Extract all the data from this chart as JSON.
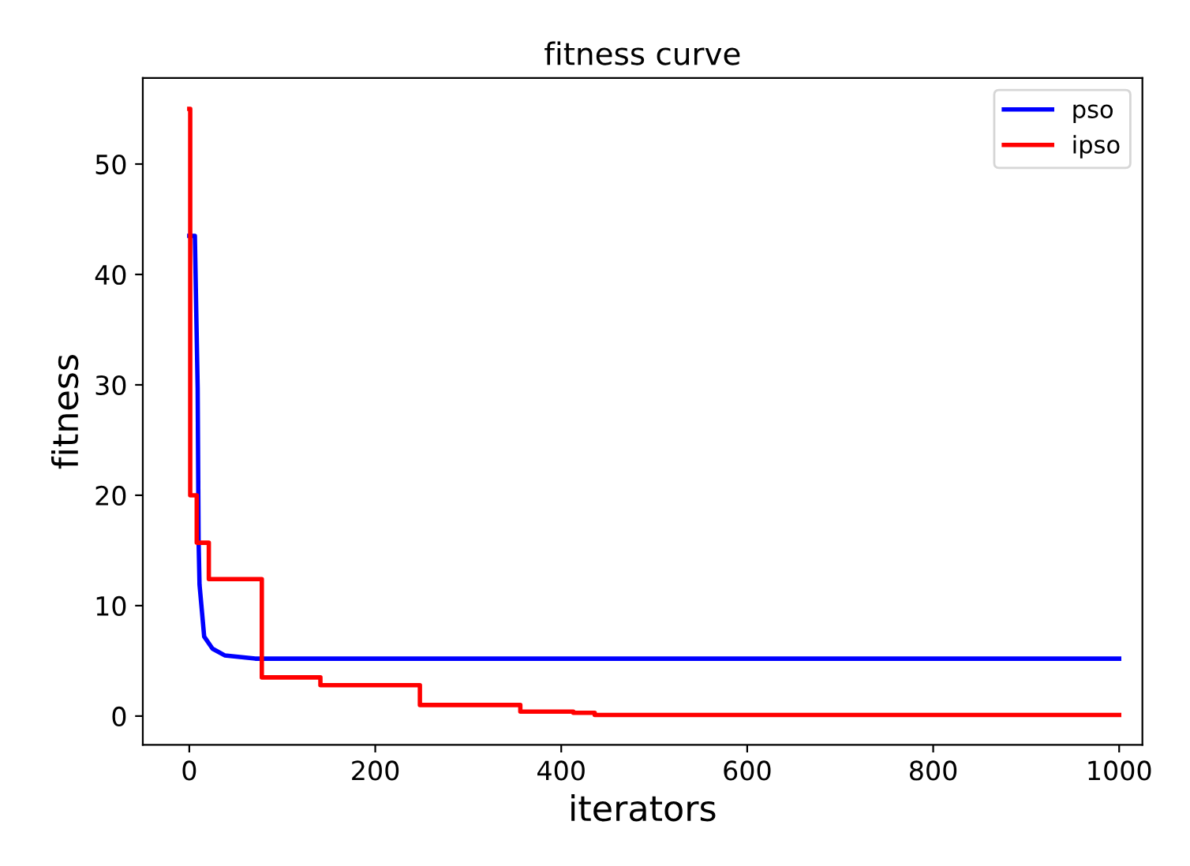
{
  "chart_data": {
    "type": "line",
    "title": "fitness curve",
    "xlabel": "iterators",
    "ylabel": "fitness",
    "series": [
      {
        "name": "pso",
        "color": "#0000ff",
        "x": [
          0,
          6,
          9,
          10,
          11,
          14,
          16,
          25,
          38,
          71,
          1000
        ],
        "values": [
          43.5,
          43.5,
          29.7,
          15.9,
          11.9,
          9.1,
          7.2,
          6.1,
          5.5,
          5.2,
          5.2
        ]
      },
      {
        "name": "ipso",
        "color": "#ff0000",
        "type": "step",
        "x": [
          0,
          1,
          8,
          21,
          78,
          141,
          248,
          356,
          413,
          436,
          1000
        ],
        "values": [
          55,
          20,
          15.7,
          12.4,
          3.5,
          2.8,
          1.0,
          0.4,
          0.3,
          0.1,
          0.1
        ]
      }
    ],
    "xlim": [
      -50,
      1025
    ],
    "ylim": [
      -2.6,
      57.8
    ],
    "xticks": [
      0,
      200,
      400,
      600,
      800,
      1000
    ],
    "yticks": [
      0,
      10,
      20,
      30,
      40,
      50
    ],
    "legend": "top right",
    "grid": false
  }
}
